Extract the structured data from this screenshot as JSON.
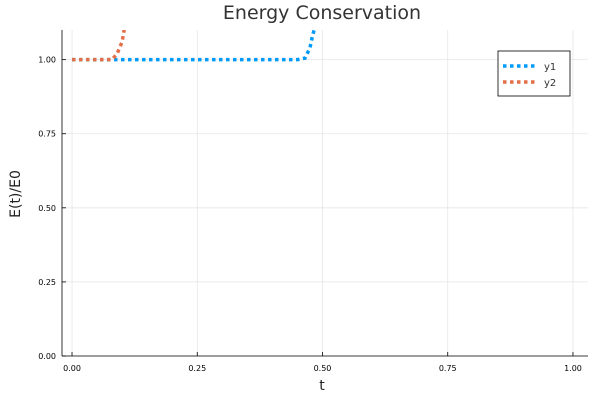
{
  "chart_data": {
    "type": "line",
    "title": "Energy Conservation",
    "xlabel": "t",
    "ylabel": "E(t)/E0",
    "xlim": [
      -0.02,
      1.03
    ],
    "ylim": [
      0.0,
      1.1
    ],
    "xticks": [
      0.0,
      0.25,
      0.5,
      0.75,
      1.0
    ],
    "xtick_labels": [
      "0.00",
      "0.25",
      "0.50",
      "0.75",
      "1.00"
    ],
    "yticks": [
      0.0,
      0.25,
      0.5,
      0.75,
      1.0
    ],
    "ytick_labels": [
      "0.00",
      "0.25",
      "0.50",
      "0.75",
      "1.00"
    ],
    "grid": true,
    "legend_position": "top-right",
    "series": [
      {
        "name": "y1",
        "color": "#009AFA",
        "style": "dotted",
        "x": [
          0.0,
          0.05,
          0.1,
          0.15,
          0.2,
          0.25,
          0.3,
          0.35,
          0.4,
          0.45,
          0.465,
          0.475,
          0.48,
          0.485
        ],
        "y": [
          1.0,
          1.0,
          1.0,
          1.0,
          1.0,
          1.0,
          1.0,
          1.0,
          1.0,
          1.0,
          1.005,
          1.04,
          1.08,
          1.11
        ]
      },
      {
        "name": "y2",
        "color": "#E36F47",
        "style": "dotted",
        "x": [
          0.0,
          0.02,
          0.04,
          0.06,
          0.08,
          0.09,
          0.1,
          0.105
        ],
        "y": [
          1.0,
          1.0,
          1.0,
          1.0,
          1.0,
          1.02,
          1.06,
          1.11
        ]
      }
    ]
  }
}
